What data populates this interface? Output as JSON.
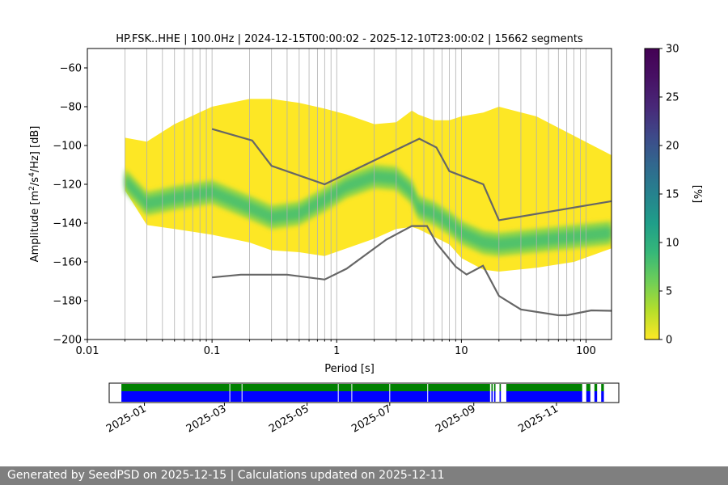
{
  "footer": "Generated by SeedPSD on 2025-12-15 | Calculations updated on 2025-12-11",
  "chart_data": [
    {
      "type": "heatmap",
      "title": "HP.FSK..HHE | 100.0Hz | 2024-12-15T00:00:02 - 2025-12-10T23:00:02 | 15662 segments",
      "xlabel": "Period [s]",
      "ylabel_parts": [
        "Amplitude [m",
        "2",
        "/s",
        "4",
        "/Hz] [dB]"
      ],
      "x_scale": "log",
      "xlim": [
        0.01,
        160
      ],
      "ylim": [
        -200,
        -50
      ],
      "x_ticks": [
        0.01,
        0.1,
        1,
        10,
        100
      ],
      "x_tick_labels": [
        "0.01",
        "0.1",
        "1",
        "10",
        "100"
      ],
      "y_ticks": [
        -200,
        -180,
        -160,
        -140,
        -120,
        -100,
        -80,
        -60
      ],
      "y_tick_labels": [
        "−200",
        "−180",
        "−160",
        "−140",
        "−120",
        "−100",
        "−80",
        "−60"
      ],
      "grid": "vertical at log periods",
      "colormap": "viridis",
      "colorbar": {
        "label": "[%]",
        "range": [
          0,
          30
        ],
        "ticks": [
          "0",
          "5",
          "10",
          "15",
          "20",
          "25",
          "30"
        ]
      },
      "psd_envelope": {
        "period": [
          0.02,
          0.03,
          0.05,
          0.1,
          0.2,
          0.3,
          0.5,
          0.8,
          1.2,
          2,
          3,
          4,
          4.5,
          6,
          8,
          10,
          15,
          20,
          40,
          80,
          160
        ],
        "top": [
          -96,
          -98,
          -89,
          -80,
          -76,
          -76,
          -78,
          -81,
          -84,
          -89,
          -88,
          -82,
          -84,
          -87,
          -87,
          -85,
          -83,
          -80,
          -85,
          -95,
          -105
        ],
        "mode": [
          -118,
          -130,
          -127,
          -124,
          -132,
          -137,
          -135,
          -128,
          -121,
          -116,
          -117,
          -124,
          -132,
          -135,
          -140,
          -145,
          -150,
          -151,
          -149,
          -147,
          -145
        ],
        "bottom": [
          -123,
          -141,
          -143,
          -146,
          -150,
          -154,
          -155,
          -157,
          -153,
          -148,
          -143,
          -142,
          -143,
          -147,
          -151,
          -158,
          -164,
          -165,
          -163,
          -160,
          -153
        ]
      },
      "series": [
        {
          "type": "line",
          "color": "#666666",
          "period": [
            0.1,
            0.21,
            0.3,
            0.8,
            4.6,
            6.3,
            8,
            15,
            20,
            160
          ],
          "db": [
            -91.5,
            -97.4,
            -110.5,
            -120,
            -96.5,
            -101,
            -113.2,
            -120,
            -138.5,
            -128.7
          ]
        },
        {
          "type": "line",
          "color": "#666666",
          "period": [
            0.1,
            0.17,
            0.4,
            0.8,
            1.2,
            2.5,
            4,
            5.3,
            6.3,
            9,
            11,
            14.9,
            20,
            30,
            60,
            70,
            110,
            160
          ],
          "db": [
            -168,
            -166.6,
            -166.6,
            -169.1,
            -163.5,
            -148.5,
            -141.5,
            -141.5,
            -150.3,
            -162.5,
            -166.5,
            -162,
            -177.5,
            -184.5,
            -187.5,
            -187.5,
            -185,
            -185.2
          ]
        }
      ]
    },
    {
      "type": "timeline",
      "x_tick_labels": [
        "2025-01",
        "2025-03",
        "2025-05",
        "2025-07",
        "2025-09",
        "2025-11"
      ],
      "x_ticks": [
        "2025-01-01",
        "2025-03-01",
        "2025-05-01",
        "2025-07-01",
        "2025-09-01",
        "2025-11-01"
      ],
      "xlim": [
        "2024-12-06",
        "2025-12-17"
      ],
      "data_bars": [
        [
          "2024-12-15",
          "2025-09-13"
        ],
        [
          "2025-09-14",
          "2025-09-15"
        ],
        [
          "2025-09-16",
          "2025-09-17"
        ],
        [
          "2025-09-20",
          "2025-09-21"
        ],
        [
          "2025-09-25",
          "2025-11-20"
        ],
        [
          "2025-11-23",
          "2025-11-26"
        ],
        [
          "2025-11-29",
          "2025-12-01"
        ],
        [
          "2025-12-04",
          "2025-12-06"
        ]
      ],
      "gaps": [
        "2025-03-05",
        "2025-03-14",
        "2025-05-24",
        "2025-06-03",
        "2025-07-01",
        "2025-07-29"
      ],
      "colors": {
        "coverage": "#008000",
        "psd": "#0000ff"
      }
    }
  ]
}
